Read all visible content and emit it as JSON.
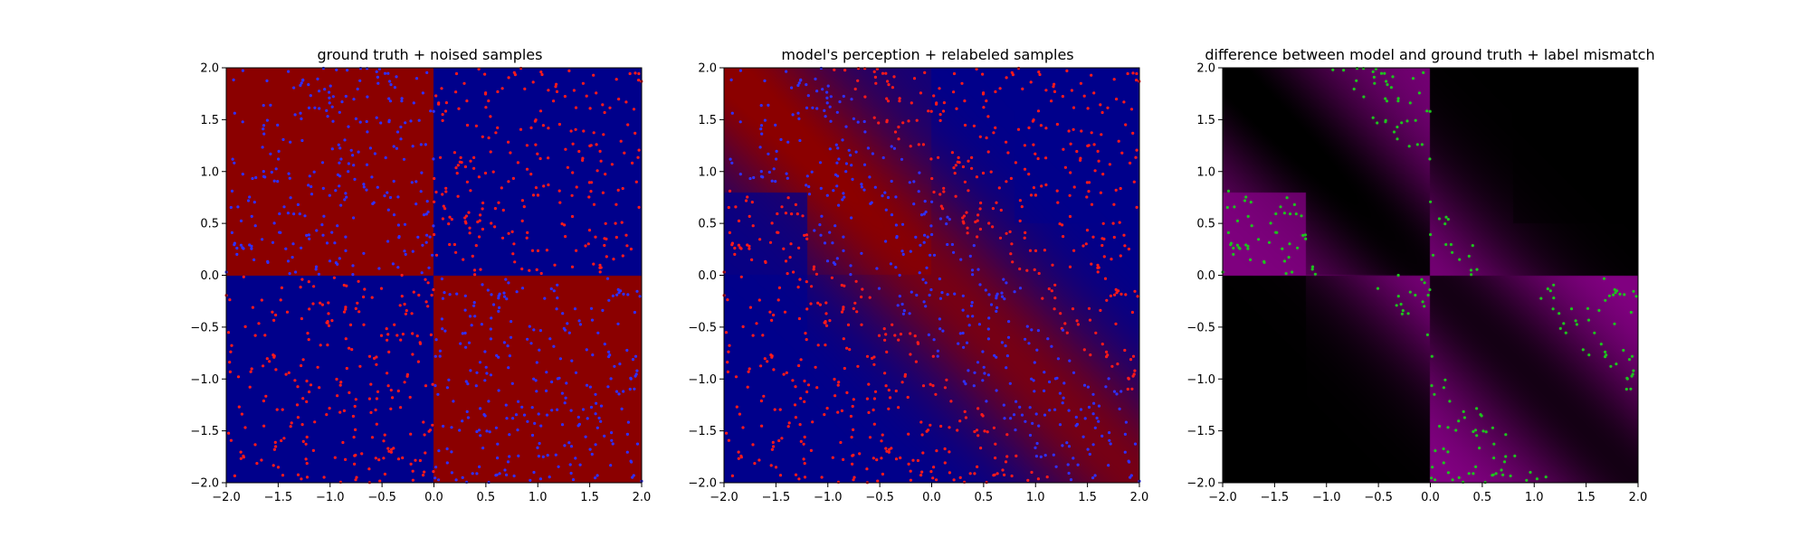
{
  "figure": {
    "panels": [
      {
        "title": "ground truth + noised samples",
        "render": "gt",
        "xlim": [
          -2,
          2
        ],
        "ylim": [
          -2,
          2
        ],
        "xticks": [
          "−2.0",
          "−1.5",
          "−1.0",
          "−0.5",
          "0.0",
          "0.5",
          "1.0",
          "1.5",
          "2.0"
        ],
        "yticks": [
          "−2.0",
          "−1.5",
          "−1.0",
          "−0.5",
          "0.0",
          "0.5",
          "1.0",
          "1.5",
          "2.0"
        ]
      },
      {
        "title": "model's perception + relabeled samples",
        "render": "model",
        "xlim": [
          -2,
          2
        ],
        "ylim": [
          -2,
          2
        ],
        "xticks": [
          "−2.0",
          "−1.5",
          "−1.0",
          "−0.5",
          "0.0",
          "0.5",
          "1.0",
          "1.5",
          "2.0"
        ],
        "yticks": [
          "−2.0",
          "−1.5",
          "−1.0",
          "−0.5",
          "0.0",
          "0.5",
          "1.0",
          "1.5",
          "2.0"
        ]
      },
      {
        "title": "difference between model and ground truth + label mismatch",
        "render": "diff",
        "xlim": [
          -2,
          2
        ],
        "ylim": [
          -2,
          2
        ],
        "xticks": [
          "−2.0",
          "−1.5",
          "−1.0",
          "−0.5",
          "0.0",
          "0.5",
          "1.0",
          "1.5",
          "2.0"
        ],
        "yticks": [
          "−2.0",
          "−1.5",
          "−1.0",
          "−0.5",
          "0.0",
          "0.5",
          "1.0",
          "1.5",
          "2.0"
        ]
      }
    ],
    "colors": {
      "class_red": "#8b0000",
      "class_blue": "#00008b",
      "point_red": "#ff1a1a",
      "point_blue": "#3030ff",
      "mismatch_green": "#1fc21f",
      "diff_magenta": "#800080",
      "diff_black": "#000000"
    }
  },
  "chart_data": [
    {
      "type": "heatmap",
      "title": "ground truth + noised samples",
      "xlim": [
        -2,
        2
      ],
      "ylim": [
        -2,
        2
      ],
      "regions": [
        {
          "x": [
            -2,
            0
          ],
          "y": [
            0,
            2
          ],
          "class": "red"
        },
        {
          "x": [
            0,
            2
          ],
          "y": [
            0,
            2
          ],
          "class": "blue"
        },
        {
          "x": [
            -2,
            0
          ],
          "y": [
            -2,
            0
          ],
          "class": "blue"
        },
        {
          "x": [
            0,
            2
          ],
          "y": [
            -2,
            0
          ],
          "class": "red"
        }
      ],
      "scatter": {
        "distribution": "uniform",
        "n_points": 1000,
        "x_range": [
          -2,
          2
        ],
        "y_range": [
          -2,
          2
        ],
        "label_rule": "point label = opposite of underlying region color"
      }
    },
    {
      "type": "heatmap",
      "title": "model's perception + relabeled samples",
      "xlim": [
        -2,
        2
      ],
      "ylim": [
        -2,
        2
      ],
      "description_of_field": "smooth blend; red along band from upper-left to lower-right, blue toward lower-left and upper-right",
      "scatter": {
        "distribution": "uniform",
        "n_points": 1000,
        "x_range": [
          -2,
          2
        ],
        "y_range": [
          -2,
          2
        ],
        "label_rule": "point label = opposite of model field color"
      }
    },
    {
      "type": "heatmap",
      "title": "difference between model and ground truth + label mismatch",
      "xlim": [
        -2,
        2
      ],
      "ylim": [
        -2,
        2
      ],
      "colormap": [
        "black",
        "magenta"
      ],
      "scatter": {
        "color": "green",
        "approx_count": 250,
        "location": "points clustered along x≈0.2 vertical band and along diagonal boundary regions"
      }
    }
  ]
}
